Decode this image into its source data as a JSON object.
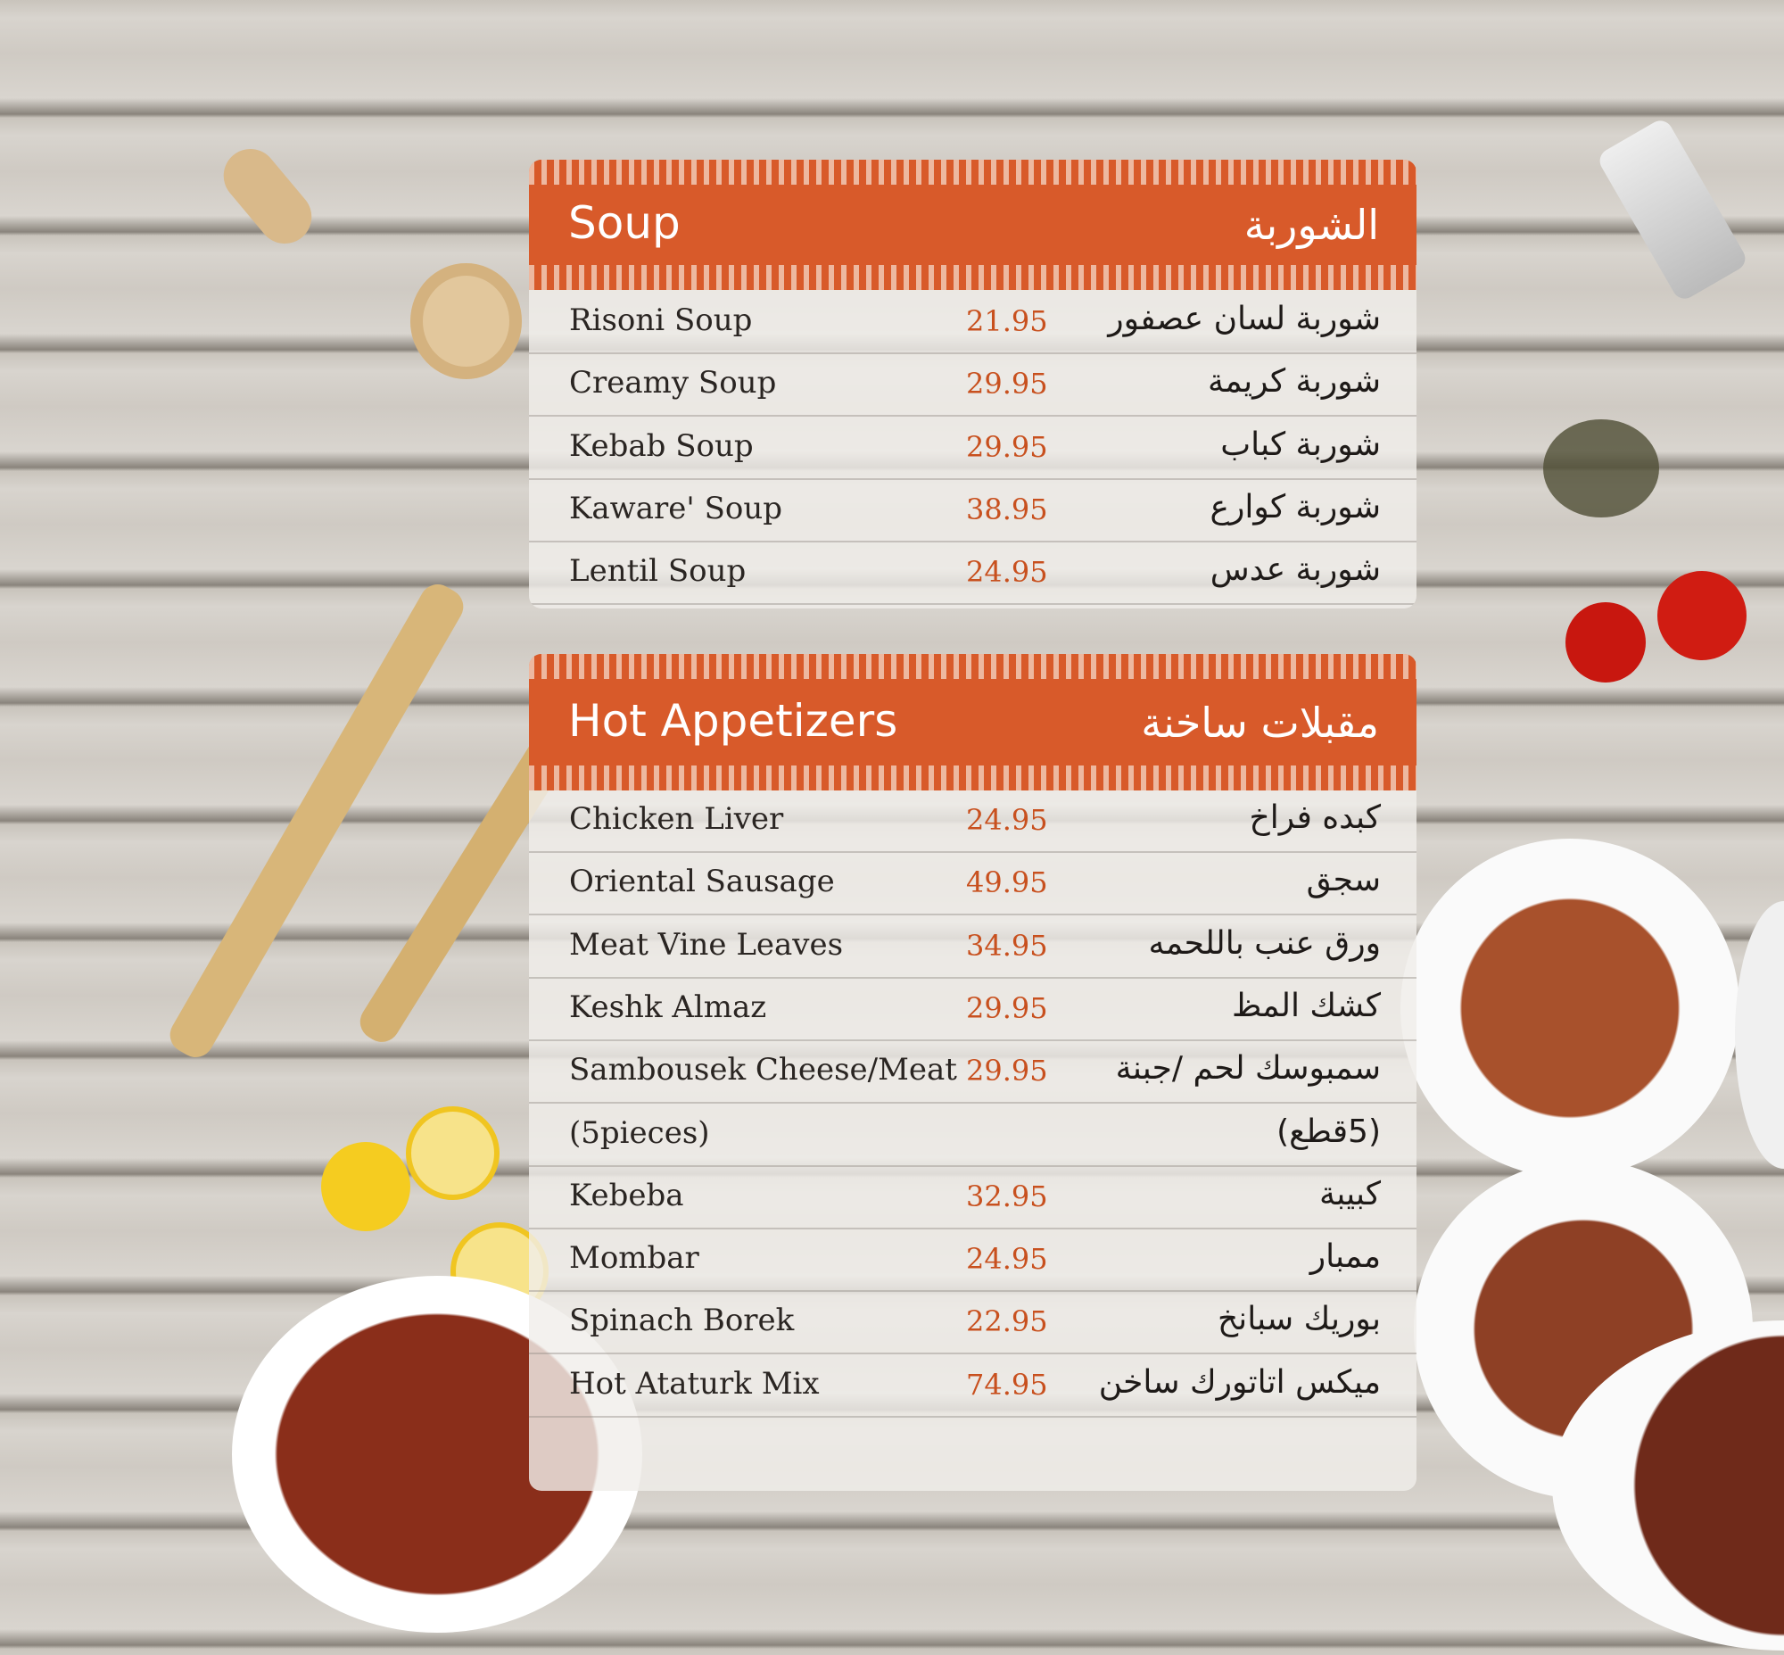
{
  "sections": [
    {
      "title_en": "Soup",
      "title_ar": "الشوربة",
      "items": [
        {
          "en": "Risoni Soup",
          "price": "21.95",
          "ar": "شوربة لسان عصفور"
        },
        {
          "en": "Creamy Soup",
          "price": "29.95",
          "ar": "شوربة كريمة"
        },
        {
          "en": "Kebab Soup",
          "price": "29.95",
          "ar": "شوربة كباب"
        },
        {
          "en": "Kaware' Soup",
          "price": "38.95",
          "ar": "شوربة كوارع"
        },
        {
          "en": "Lentil Soup",
          "price": "24.95",
          "ar": "شوربة عدس"
        }
      ]
    },
    {
      "title_en": "Hot Appetizers",
      "title_ar": "مقبلات ساخنة",
      "items": [
        {
          "en": "Chicken Liver",
          "price": "24.95",
          "ar": "كبده فراخ"
        },
        {
          "en": "Oriental Sausage",
          "price": "49.95",
          "ar": "سجق"
        },
        {
          "en": "Meat Vine Leaves",
          "price": "34.95",
          "ar": "ورق عنب باللحمه"
        },
        {
          "en": "Keshk Almaz",
          "price": "29.95",
          "ar": "كشك المظ"
        },
        {
          "en": "Sambousek Cheese/Meat",
          "price": "29.95",
          "ar": "سمبوسك لحم /جبنة"
        },
        {
          "en": "(5pieces)",
          "price": "",
          "ar": "(5قطع)"
        },
        {
          "en": "Kebeba",
          "price": "32.95",
          "ar": "كبيبة"
        },
        {
          "en": "Mombar",
          "price": "24.95",
          "ar": "ممبار"
        },
        {
          "en": "Spinach Borek",
          "price": "22.95",
          "ar": "بوريك سبانخ"
        },
        {
          "en": "Hot Ataturk Mix",
          "price": "74.95",
          "ar": "ميكس اتاتورك ساخن"
        }
      ]
    }
  ],
  "colors": {
    "accent": "#d85a2a",
    "price": "#c8501e"
  }
}
